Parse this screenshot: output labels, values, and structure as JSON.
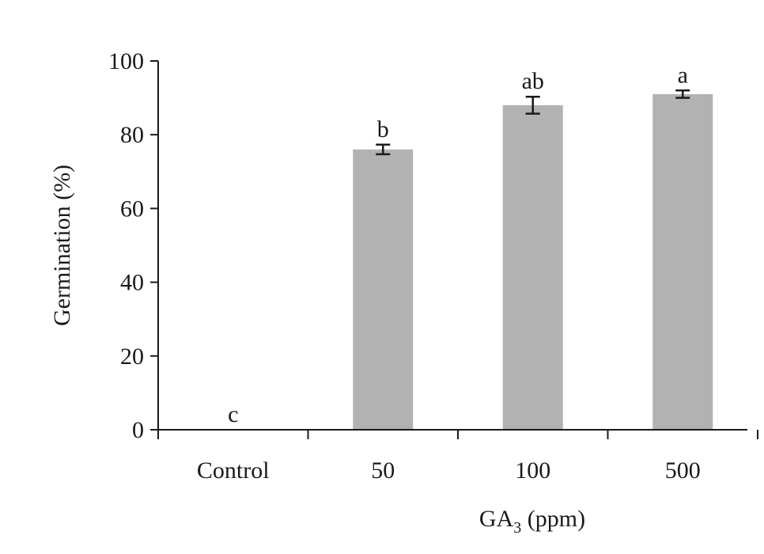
{
  "chart_data": {
    "type": "bar",
    "categories": [
      "Control",
      "50",
      "100",
      "500"
    ],
    "values": [
      0,
      76,
      88,
      91
    ],
    "errors": [
      0,
      1.3,
      2.3,
      1.0
    ],
    "significance_labels": [
      "c",
      "b",
      "ab",
      "a"
    ],
    "ylabel": "Germination (%)",
    "xlabel": {
      "base": "GA",
      "subscript": "3",
      "suffix": " (ppm)"
    },
    "ylim": [
      0,
      100
    ],
    "yticks": [
      0,
      20,
      40,
      60,
      80,
      100
    ],
    "grid": false,
    "bar_color": "#b2b2b2",
    "axis_color": "#1a1a1a"
  }
}
